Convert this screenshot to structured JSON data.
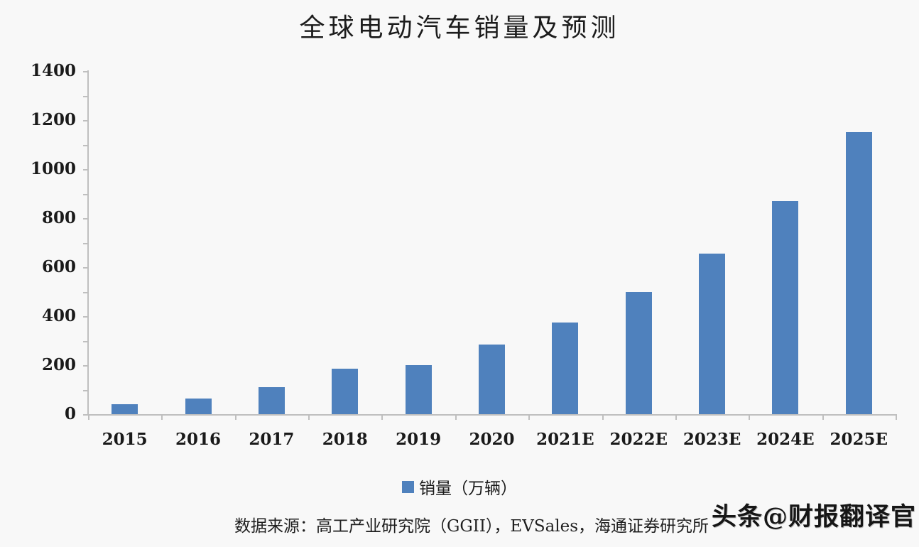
{
  "page": {
    "background": "#f8f8f8"
  },
  "chart_data": {
    "type": "bar",
    "title": "全球电动汽车销量及预测",
    "categories": [
      "2015",
      "2016",
      "2017",
      "2018",
      "2019",
      "2020",
      "2021E",
      "2022E",
      "2023E",
      "2024E",
      "2025E"
    ],
    "values": [
      40,
      65,
      110,
      185,
      200,
      285,
      375,
      500,
      655,
      870,
      1150
    ],
    "series_name": "销量（万辆）",
    "xlabel": "",
    "ylabel": "",
    "ylim": [
      0,
      1400
    ],
    "ytick_step": 200,
    "yticks": [
      0,
      200,
      400,
      600,
      800,
      1000,
      1200,
      1400
    ],
    "minor_tick_step": 100,
    "grid": false,
    "legend_position": "bottom",
    "bar_color": "#4f81bd",
    "axis_color": "#bfbfbf",
    "text_color": "#1a1a1a"
  },
  "legend": {
    "label": "销量（万辆）",
    "swatch_color": "#4f81bd"
  },
  "footer": {
    "source": "数据来源：高工产业研究院（GGII），EVSales，海通证券研究所",
    "watermark": "头条@财报翻译官"
  }
}
